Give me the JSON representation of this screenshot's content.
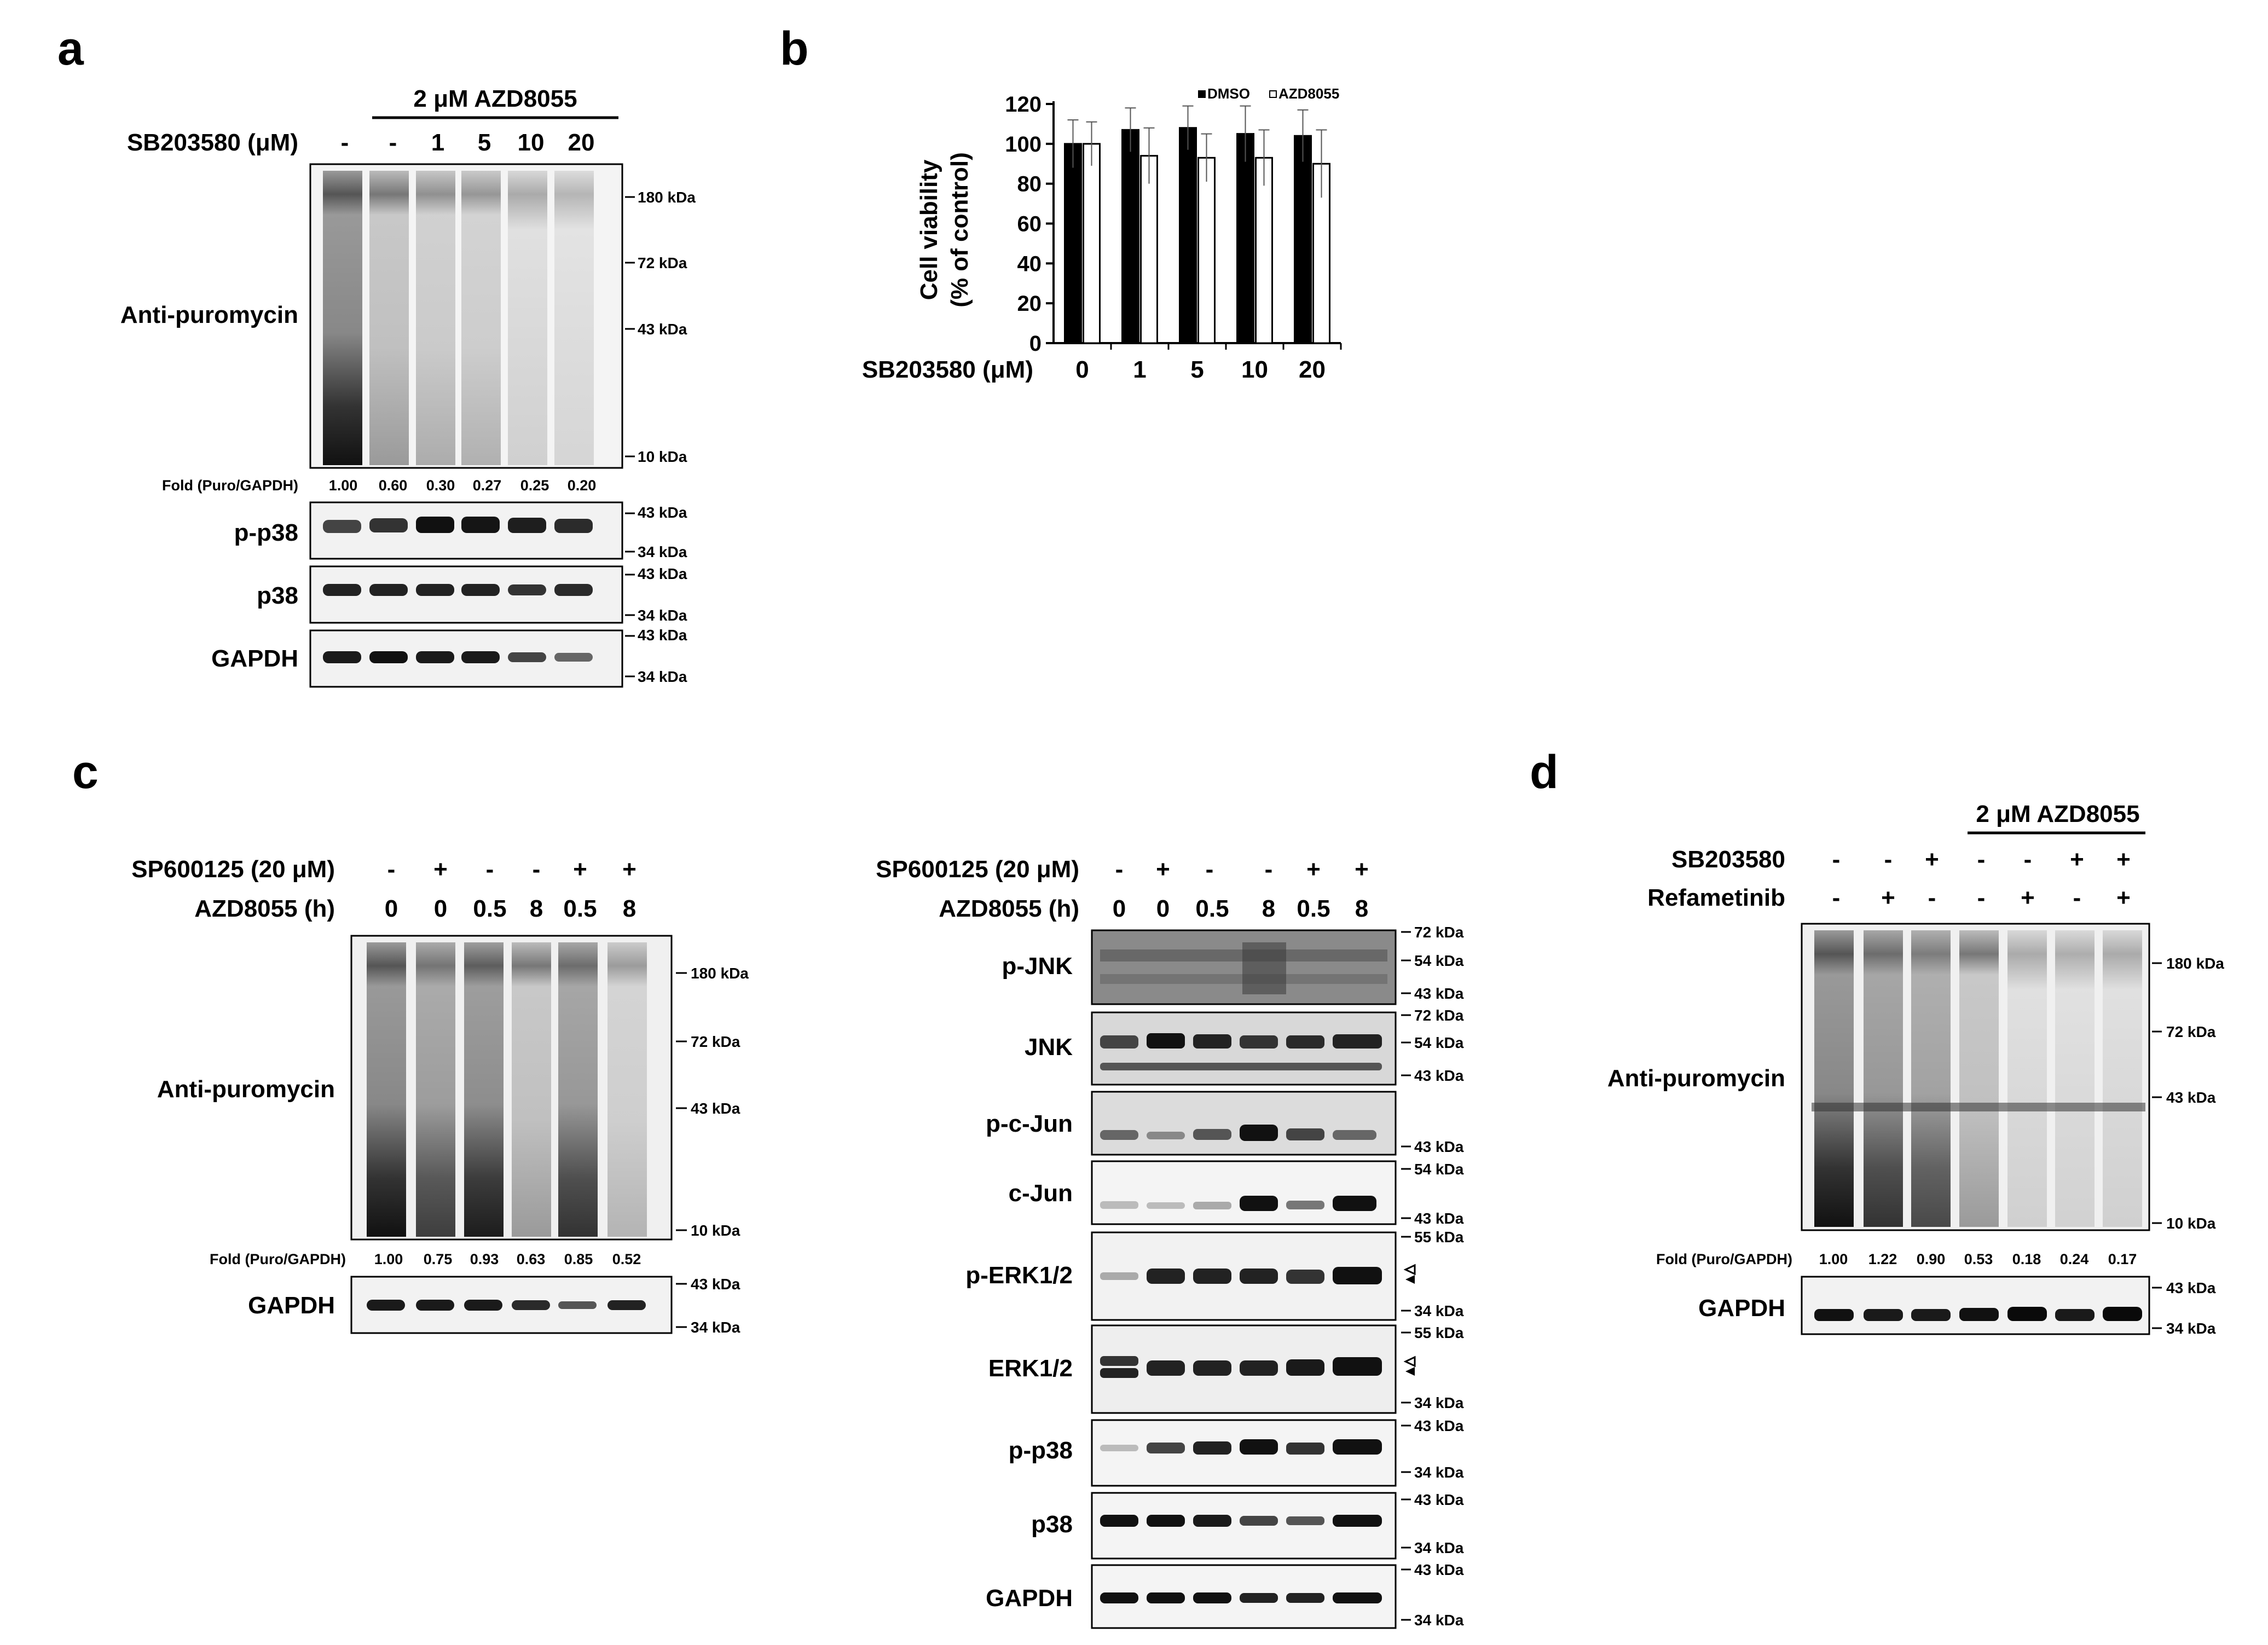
{
  "panels": {
    "a": {
      "letter": "a",
      "treatment": "2 μM AZD8055",
      "row_label": "SB203580 (μM)",
      "lanes": [
        "-",
        "-",
        "1",
        "5",
        "10",
        "20"
      ],
      "blot_label": "Anti-puromycin",
      "markers": [
        "180 kDa",
        "72 kDa",
        "43 kDa",
        "10 kDa"
      ],
      "fold_label": "Fold (Puro/GAPDH)",
      "fold_values": [
        "1.00",
        "0.60",
        "0.30",
        "0.27",
        "0.25",
        "0.20"
      ],
      "small_blots": [
        {
          "label": "p-p38",
          "markers": [
            "43 kDa",
            "34 kDa"
          ]
        },
        {
          "label": "p38",
          "markers": [
            "43 kDa",
            "34 kDa"
          ]
        },
        {
          "label": "GAPDH",
          "markers": [
            "43 kDa",
            "34 kDa"
          ]
        }
      ]
    },
    "b": {
      "letter": "b",
      "ylabel_line1": "Cell viability",
      "ylabel_line2": "(% of control)",
      "xlabel": "SB203580 (μM)"
    },
    "c": {
      "letter": "c",
      "row1_label": "SP600125 (20 μM)",
      "row1_lanes": [
        "-",
        "+",
        "-",
        "-",
        "+",
        "+"
      ],
      "row2_label": "AZD8055 (h)",
      "row2_lanes": [
        "0",
        "0",
        "0.5",
        "8",
        "0.5",
        "8"
      ],
      "blot_label": "Anti-puromycin",
      "markers": [
        "180 kDa",
        "72 kDa",
        "43 kDa",
        "10 kDa"
      ],
      "fold_label": "Fold (Puro/GAPDH)",
      "fold_values": [
        "1.00",
        "0.75",
        "0.93",
        "0.63",
        "0.85",
        "0.52"
      ],
      "gapdh_label": "GAPDH",
      "gapdh_markers": [
        "43 kDa",
        "34 kDa"
      ]
    },
    "c_right": {
      "row1_label": "SP600125 (20 μM)",
      "row1_lanes": [
        "-",
        "+",
        "-",
        "-",
        "+",
        "+"
      ],
      "row2_label": "AZD8055 (h)",
      "row2_lanes": [
        "0",
        "0",
        "0.5",
        "8",
        "0.5",
        "8"
      ],
      "blots": [
        {
          "label": "p-JNK",
          "markers": [
            "72 kDa",
            "54 kDa",
            "43 kDa"
          ]
        },
        {
          "label": "JNK",
          "markers": [
            "72 kDa",
            "54 kDa",
            "43 kDa"
          ]
        },
        {
          "label": "p-c-Jun",
          "markers": [
            "43 kDa"
          ]
        },
        {
          "label": "c-Jun",
          "markers": [
            "54 kDa",
            "43 kDa"
          ]
        },
        {
          "label": "p-ERK1/2",
          "markers": [
            "55 kDa",
            "34 kDa"
          ]
        },
        {
          "label": "ERK1/2",
          "markers": [
            "55 kDa",
            "34 kDa"
          ]
        },
        {
          "label": "p-p38",
          "markers": [
            "43 kDa",
            "34 kDa"
          ]
        },
        {
          "label": "p38",
          "markers": [
            "43 kDa",
            "34 kDa"
          ]
        },
        {
          "label": "GAPDH",
          "markers": [
            "43 kDa",
            "34 kDa"
          ]
        }
      ]
    },
    "d": {
      "letter": "d",
      "treatment": "2 μM AZD8055",
      "row1_label": "SB203580",
      "row1_lanes": [
        "-",
        "-",
        "+",
        "-",
        "-",
        "+",
        "+"
      ],
      "row2_label": "Refametinib",
      "row2_lanes": [
        "-",
        "+",
        "-",
        "-",
        "+",
        "-",
        "+"
      ],
      "blot_label": "Anti-puromycin",
      "markers": [
        "180 kDa",
        "72 kDa",
        "43 kDa",
        "10 kDa"
      ],
      "fold_label": "Fold (Puro/GAPDH)",
      "fold_values": [
        "1.00",
        "1.22",
        "0.90",
        "0.53",
        "0.18",
        "0.24",
        "0.17"
      ],
      "gapdh_label": "GAPDH",
      "gapdh_markers": [
        "43 kDa",
        "34 kDa"
      ]
    }
  },
  "chart_data": {
    "type": "bar",
    "categories": [
      "0",
      "1",
      "5",
      "10",
      "20"
    ],
    "series": [
      {
        "name": "DMSO",
        "values": [
          100,
          107,
          108,
          105,
          104
        ],
        "errors": [
          12,
          11,
          11,
          14,
          13
        ],
        "color": "#000000"
      },
      {
        "name": "AZD8055",
        "values": [
          100,
          94,
          93,
          93,
          90
        ],
        "errors": [
          11,
          14,
          12,
          14,
          17
        ],
        "color": "#ffffff"
      }
    ],
    "ylabel": "Cell viability (% of control)",
    "xlabel": "SB203580 (μM)",
    "ylim": [
      0,
      120
    ],
    "yticks": [
      0,
      20,
      40,
      60,
      80,
      100,
      120
    ],
    "legend_position": "top-right",
    "grid": false
  }
}
